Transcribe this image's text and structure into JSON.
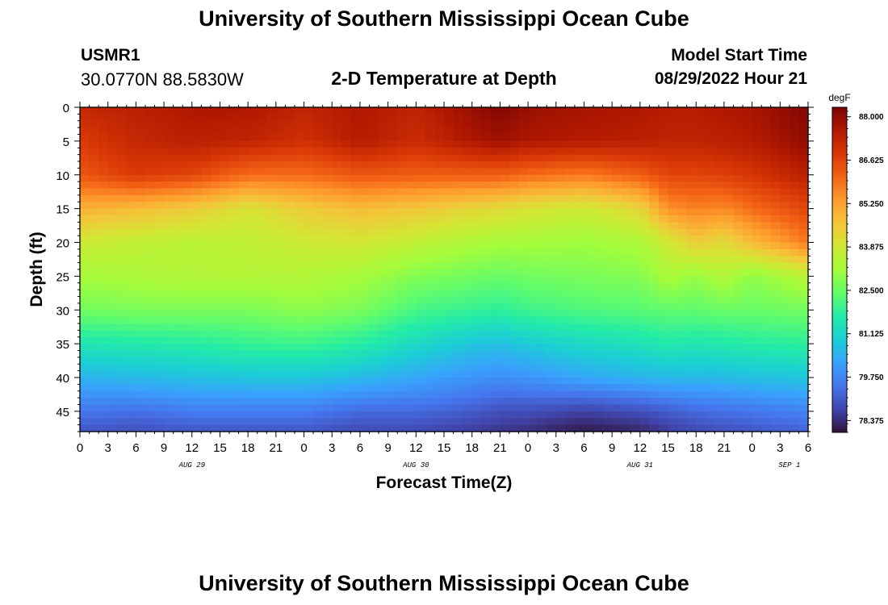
{
  "header": {
    "title": "University of Southern Mississippi Ocean Cube",
    "station_id": "USMR1",
    "coordinates": "30.0770N  88.5830W",
    "plot_title": "2-D Temperature at Depth",
    "model_start_label": "Model Start Time",
    "model_start_value": "08/29/2022 Hour 21"
  },
  "footer": {
    "title": "University of Southern Mississippi Ocean Cube"
  },
  "chart_data": {
    "type": "heatmap",
    "title": "2-D Temperature at Depth",
    "xlabel": "Forecast Time(Z)",
    "ylabel": "Depth (ft)",
    "x_unit": "hours since AUG 29 00Z",
    "xlim": [
      0,
      78
    ],
    "ylim": [
      48,
      0
    ],
    "x_ticks": [
      {
        "h": 0,
        "label": "0"
      },
      {
        "h": 3,
        "label": "3"
      },
      {
        "h": 6,
        "label": "6"
      },
      {
        "h": 9,
        "label": "9"
      },
      {
        "h": 12,
        "label": "12"
      },
      {
        "h": 15,
        "label": "15"
      },
      {
        "h": 18,
        "label": "18"
      },
      {
        "h": 21,
        "label": "21"
      },
      {
        "h": 24,
        "label": "0"
      },
      {
        "h": 27,
        "label": "3"
      },
      {
        "h": 30,
        "label": "6"
      },
      {
        "h": 33,
        "label": "9"
      },
      {
        "h": 36,
        "label": "12"
      },
      {
        "h": 39,
        "label": "15"
      },
      {
        "h": 42,
        "label": "18"
      },
      {
        "h": 45,
        "label": "21"
      },
      {
        "h": 48,
        "label": "0"
      },
      {
        "h": 51,
        "label": "3"
      },
      {
        "h": 54,
        "label": "6"
      },
      {
        "h": 57,
        "label": "9"
      },
      {
        "h": 60,
        "label": "12"
      },
      {
        "h": 63,
        "label": "15"
      },
      {
        "h": 66,
        "label": "18"
      },
      {
        "h": 69,
        "label": "21"
      },
      {
        "h": 72,
        "label": "0"
      },
      {
        "h": 75,
        "label": "3"
      },
      {
        "h": 78,
        "label": "6"
      }
    ],
    "day_labels": [
      {
        "h": 12,
        "label": "AUG 29"
      },
      {
        "h": 36,
        "label": "AUG 30"
      },
      {
        "h": 60,
        "label": "AUG 31"
      },
      {
        "h": 76,
        "label": "SEP 1"
      }
    ],
    "y_ticks": [
      {
        "d": 0,
        "label": "0"
      },
      {
        "d": 5,
        "label": "5"
      },
      {
        "d": 10,
        "label": "10"
      },
      {
        "d": 15,
        "label": "15"
      },
      {
        "d": 20,
        "label": "20"
      },
      {
        "d": 25,
        "label": "25"
      },
      {
        "d": 30,
        "label": "30"
      },
      {
        "d": 35,
        "label": "35"
      },
      {
        "d": 40,
        "label": "40"
      },
      {
        "d": 45,
        "label": "45"
      }
    ],
    "colorbar": {
      "unit": "degF",
      "min": 78.0,
      "max": 88.3,
      "ticks": [
        {
          "v": 88.0,
          "label": "88.000"
        },
        {
          "v": 86.625,
          "label": "86.625"
        },
        {
          "v": 85.25,
          "label": "85.250"
        },
        {
          "v": 83.875,
          "label": "83.875"
        },
        {
          "v": 82.5,
          "label": "82.500"
        },
        {
          "v": 81.125,
          "label": "81.125"
        },
        {
          "v": 79.75,
          "label": "79.750"
        },
        {
          "v": 78.375,
          "label": "78.375"
        }
      ],
      "colors": [
        "#30123b",
        "#4145ab",
        "#4675ed",
        "#39a2fc",
        "#1bcfd4",
        "#24eca6",
        "#61fc6c",
        "#a4fc3b",
        "#d1e834",
        "#f3c63a",
        "#fe9b2d",
        "#f36315",
        "#d93806",
        "#b11901",
        "#7a0403"
      ]
    },
    "columns_h": [
      0,
      6,
      12,
      18,
      24,
      30,
      36,
      42,
      45,
      48,
      54,
      60,
      63,
      66,
      69,
      72,
      78
    ],
    "rows_ft": [
      0,
      5,
      10,
      15,
      20,
      25,
      30,
      35,
      40,
      45,
      48
    ],
    "temperatures_degF": [
      [
        87.2,
        87.4,
        87.6,
        87.6,
        87.3,
        87.6,
        87.3,
        87.9,
        88.2,
        87.9,
        87.7,
        87.6,
        87.5,
        87.5,
        87.6,
        87.7,
        88.2
      ],
      [
        86.8,
        87.2,
        87.4,
        87.3,
        87.0,
        87.5,
        87.1,
        87.6,
        87.8,
        87.6,
        87.5,
        87.4,
        87.3,
        87.3,
        87.4,
        87.5,
        88.0
      ],
      [
        86.3,
        86.8,
        86.6,
        86.0,
        86.0,
        86.3,
        86.2,
        86.2,
        86.2,
        86.0,
        85.8,
        86.2,
        86.6,
        86.6,
        86.7,
        86.9,
        87.4
      ],
      [
        85.0,
        84.8,
        84.5,
        84.0,
        84.5,
        84.8,
        84.6,
        84.3,
        84.2,
        84.0,
        83.8,
        84.3,
        85.5,
        85.7,
        85.6,
        86.0,
        86.6
      ],
      [
        83.8,
        83.6,
        83.5,
        83.6,
        83.8,
        83.9,
        83.6,
        83.3,
        83.2,
        83.2,
        83.1,
        83.3,
        83.8,
        84.5,
        84.2,
        84.8,
        85.8
      ],
      [
        83.2,
        83.3,
        83.4,
        83.4,
        83.4,
        83.2,
        82.8,
        82.6,
        82.5,
        82.6,
        82.7,
        82.8,
        83.3,
        83.0,
        83.4,
        82.9,
        83.5
      ],
      [
        82.6,
        82.7,
        82.7,
        82.7,
        82.9,
        82.7,
        82.1,
        81.9,
        81.8,
        82.0,
        82.2,
        82.3,
        82.4,
        82.4,
        82.5,
        82.5,
        82.6
      ],
      [
        81.5,
        81.6,
        81.7,
        81.9,
        82.0,
        81.7,
        81.2,
        80.8,
        80.7,
        80.9,
        81.2,
        81.4,
        81.6,
        81.5,
        81.6,
        81.7,
        81.8
      ],
      [
        80.5,
        80.6,
        80.7,
        80.8,
        80.8,
        80.6,
        80.3,
        80.0,
        79.9,
        80.0,
        80.3,
        80.5,
        80.6,
        80.6,
        80.6,
        80.7,
        80.8
      ],
      [
        79.5,
        79.4,
        79.6,
        79.6,
        79.6,
        79.3,
        79.3,
        79.1,
        78.9,
        78.9,
        78.7,
        78.9,
        79.1,
        79.3,
        79.4,
        79.5,
        79.7
      ],
      [
        79.0,
        78.9,
        79.0,
        79.0,
        79.0,
        78.8,
        78.8,
        78.6,
        78.5,
        78.4,
        78.1,
        78.3,
        78.6,
        78.8,
        78.9,
        79.0,
        79.2
      ]
    ]
  }
}
